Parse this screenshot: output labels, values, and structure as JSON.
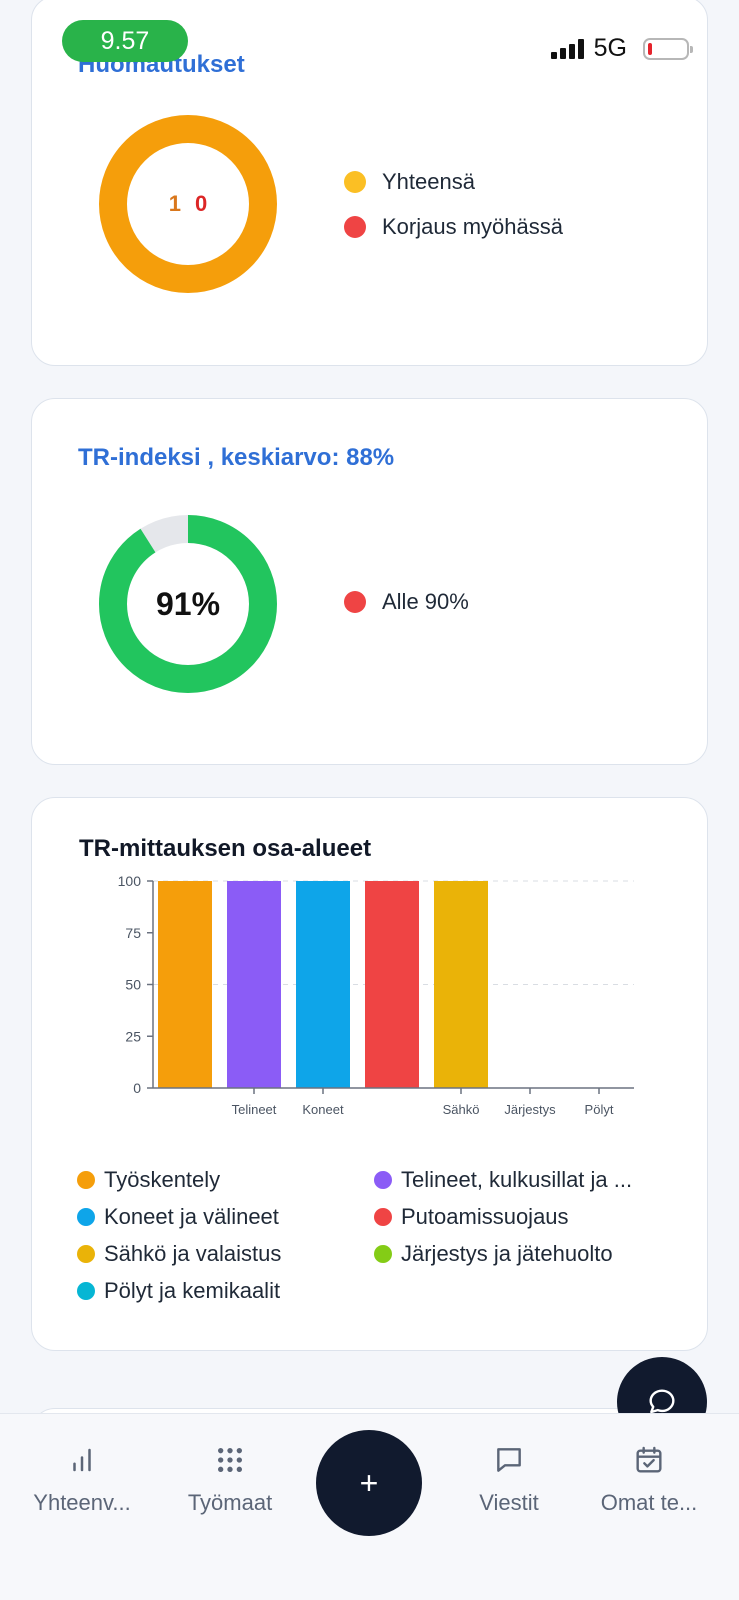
{
  "status_bar": {
    "time": "9.57",
    "network": "5G",
    "battery_level": 0.08
  },
  "remarks_card": {
    "title": "Huomautukset",
    "total_value": "1",
    "overdue_value": "0",
    "legend": [
      {
        "label": "Yhteensä",
        "color": "#fbbf24"
      },
      {
        "label": "Korjaus myöhässä",
        "color": "#ef4444"
      }
    ],
    "ring_color": "#f59e0b",
    "value_colors": {
      "total": "#d9771c",
      "overdue": "#dc2626"
    }
  },
  "tr_index_card": {
    "title": "TR-indeksi , keskiarvo: 88%",
    "center_value": "91%",
    "percent": 91,
    "ring_color": "#22c55e",
    "track_color": "#e5e7eb",
    "legend": [
      {
        "label": "Alle 90%",
        "color": "#ef4444"
      }
    ]
  },
  "tr_areas_card": {
    "title": "TR-mittauksen osa-alueet",
    "legend": [
      {
        "label": "Työskentely",
        "color": "#f59e0b"
      },
      {
        "label": "Telineet, kulkusillat ja ...",
        "color": "#8b5cf6"
      },
      {
        "label": "Koneet ja välineet",
        "color": "#0ea5e9"
      },
      {
        "label": "Putoamissuojaus",
        "color": "#ef4444"
      },
      {
        "label": "Sähkö ja valaistus",
        "color": "#eab308"
      },
      {
        "label": "Järjestys ja jätehuolto",
        "color": "#84cc16"
      },
      {
        "label": "Pölyt ja kemikaalit",
        "color": "#06b6d4"
      }
    ]
  },
  "chart_data": {
    "type": "bar",
    "title": "TR-mittauksen osa-alueet",
    "categories": [
      "Työskentely",
      "Telineet",
      "Koneet",
      "Putoamissuojaus",
      "Sähkö",
      "Järjestys",
      "Pölyt"
    ],
    "tick_labels": [
      "",
      "Telineet",
      "Koneet",
      "",
      "Sähkö",
      "Järjestys",
      "Pölyt"
    ],
    "values": [
      100,
      100,
      100,
      100,
      100,
      0,
      0
    ],
    "colors": [
      "#f59e0b",
      "#8b5cf6",
      "#0ea5e9",
      "#ef4444",
      "#eab308",
      "#84cc16",
      "#06b6d4"
    ],
    "y_ticks": [
      0,
      25,
      50,
      75,
      100
    ],
    "ylim": [
      0,
      100
    ],
    "grid": "dashed at 50 and 100",
    "xlabel": "",
    "ylabel": ""
  },
  "bottom_nav": {
    "items": [
      {
        "label": "Yhteenv...",
        "icon": "bar-chart-icon"
      },
      {
        "label": "Työmaat",
        "icon": "grid-dots-icon"
      },
      {
        "label": "Viestit",
        "icon": "message-icon"
      },
      {
        "label": "Omat te...",
        "icon": "calendar-check-icon"
      }
    ],
    "add_label": "+"
  }
}
